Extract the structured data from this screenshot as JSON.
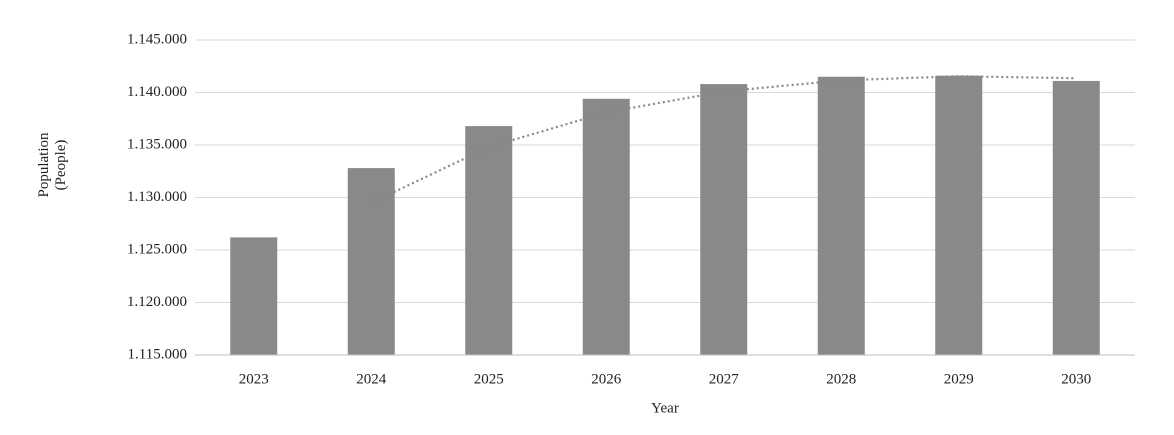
{
  "chart_data": {
    "type": "bar",
    "xlabel": "Year",
    "ylabel": "Population (People)",
    "categories": [
      "2023",
      "2024",
      "2025",
      "2026",
      "2027",
      "2028",
      "2029",
      "2030"
    ],
    "values": [
      1126200,
      1132800,
      1136800,
      1139400,
      1140800,
      1141500,
      1141600,
      1141100
    ],
    "color": "#898989",
    "ylim": [
      1115000,
      1145000
    ],
    "yticks": [
      {
        "value": 1115000,
        "label": "1.115.000"
      },
      {
        "value": 1120000,
        "label": "1.120.000"
      },
      {
        "value": 1125000,
        "label": "1.125.000"
      },
      {
        "value": 1130000,
        "label": "1.130.000"
      },
      {
        "value": 1135000,
        "label": "1.135.000"
      },
      {
        "value": 1140000,
        "label": "1.140.000"
      },
      {
        "value": 1145000,
        "label": "1.145.000"
      }
    ],
    "grid": true,
    "trendline": {
      "type": "moving-average",
      "period": 2,
      "color": "#888888",
      "style": "dotted"
    }
  }
}
